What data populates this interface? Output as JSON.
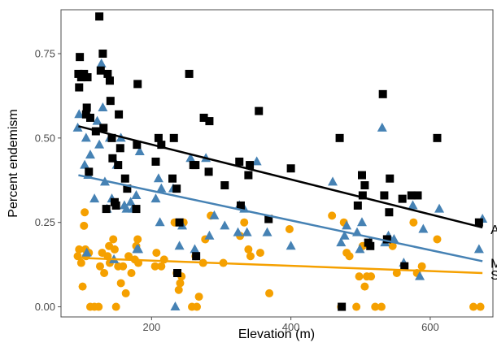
{
  "chart_data": {
    "type": "scatter",
    "title": "",
    "xlabel": "Elevation (m)",
    "ylabel": "Percent endemism",
    "xlim": [
      70,
      690
    ],
    "ylim": [
      -0.03,
      0.88
    ],
    "x_ticks": [
      200,
      400,
      600
    ],
    "x_tick_labels": [
      "200",
      "400",
      "600"
    ],
    "y_ticks": [
      0.0,
      0.25,
      0.5,
      0.75
    ],
    "y_tick_labels": [
      "0.00",
      "0.25",
      "0.50",
      "0.75"
    ],
    "grid": false,
    "legend": "none",
    "series": [
      {
        "name": "AE",
        "color": "#000000",
        "marker": "square",
        "trend": {
          "x": [
            95,
            675
          ],
          "y": [
            0.535,
            0.235
          ]
        },
        "points": [
          [
            95,
            0.69
          ],
          [
            97,
            0.74
          ],
          [
            96,
            0.65
          ],
          [
            99,
            0.68
          ],
          [
            103,
            0.69
          ],
          [
            107,
            0.59
          ],
          [
            106,
            0.57
          ],
          [
            108,
            0.68
          ],
          [
            110,
            0.4
          ],
          [
            112,
            0.56
          ],
          [
            120,
            0.52
          ],
          [
            125,
            0.86
          ],
          [
            127,
            0.7
          ],
          [
            130,
            0.75
          ],
          [
            131,
            0.53
          ],
          [
            135,
            0.29
          ],
          [
            137,
            0.69
          ],
          [
            140,
            0.67
          ],
          [
            141,
            0.61
          ],
          [
            143,
            0.5
          ],
          [
            144,
            0.44
          ],
          [
            147,
            0.31
          ],
          [
            149,
            0.3
          ],
          [
            152,
            0.42
          ],
          [
            153,
            0.57
          ],
          [
            155,
            0.47
          ],
          [
            162,
            0.38
          ],
          [
            165,
            0.35
          ],
          [
            178,
            0.29
          ],
          [
            179,
            0.48
          ],
          [
            180,
            0.66
          ],
          [
            206,
            0.43
          ],
          [
            210,
            0.5
          ],
          [
            214,
            0.48
          ],
          [
            230,
            0.38
          ],
          [
            232,
            0.5
          ],
          [
            236,
            0.35
          ],
          [
            237,
            0.1
          ],
          [
            240,
            0.25
          ],
          [
            254,
            0.69
          ],
          [
            260,
            0.42
          ],
          [
            263,
            0.42
          ],
          [
            264,
            0.15
          ],
          [
            275,
            0.56
          ],
          [
            282,
            0.4
          ],
          [
            283,
            0.55
          ],
          [
            305,
            0.36
          ],
          [
            326,
            0.43
          ],
          [
            328,
            0.3
          ],
          [
            339,
            0.39
          ],
          [
            341,
            0.42
          ],
          [
            354,
            0.58
          ],
          [
            368,
            0.26
          ],
          [
            400,
            0.41
          ],
          [
            470,
            0.5
          ],
          [
            473,
            0.0
          ],
          [
            496,
            0.3
          ],
          [
            502,
            0.39
          ],
          [
            503,
            0.33
          ],
          [
            506,
            0.36
          ],
          [
            511,
            0.19
          ],
          [
            514,
            0.18
          ],
          [
            532,
            0.63
          ],
          [
            534,
            0.33
          ],
          [
            538,
            0.2
          ],
          [
            541,
            0.28
          ],
          [
            542,
            0.38
          ],
          [
            560,
            0.32
          ],
          [
            563,
            0.12
          ],
          [
            573,
            0.33
          ],
          [
            582,
            0.33
          ],
          [
            610,
            0.5
          ],
          [
            670,
            0.25
          ]
        ]
      },
      {
        "name": "MIE",
        "color": "#4682b4",
        "marker": "triangle",
        "trend": {
          "x": [
            95,
            675
          ],
          "y": [
            0.39,
            0.135
          ]
        },
        "points": [
          [
            94,
            0.53
          ],
          [
            96,
            0.57
          ],
          [
            104,
            0.42
          ],
          [
            106,
            0.5
          ],
          [
            107,
            0.16
          ],
          [
            109,
            0.39
          ],
          [
            112,
            0.45
          ],
          [
            118,
            0.32
          ],
          [
            122,
            0.55
          ],
          [
            125,
            0.48
          ],
          [
            128,
            0.72
          ],
          [
            130,
            0.59
          ],
          [
            133,
            0.37
          ],
          [
            136,
            0.29
          ],
          [
            140,
            0.5
          ],
          [
            143,
            0.32
          ],
          [
            146,
            0.14
          ],
          [
            150,
            0.42
          ],
          [
            156,
            0.5
          ],
          [
            161,
            0.3
          ],
          [
            164,
            0.29
          ],
          [
            170,
            0.31
          ],
          [
            173,
            0.29
          ],
          [
            178,
            0.33
          ],
          [
            179,
            0.17
          ],
          [
            181,
            0.17
          ],
          [
            183,
            0.46
          ],
          [
            206,
            0.32
          ],
          [
            210,
            0.38
          ],
          [
            212,
            0.25
          ],
          [
            214,
            0.35
          ],
          [
            231,
            0.35
          ],
          [
            234,
            0.0
          ],
          [
            240,
            0.18
          ],
          [
            244,
            0.24
          ],
          [
            256,
            0.44
          ],
          [
            262,
            0.17
          ],
          [
            278,
            0.44
          ],
          [
            283,
            0.21
          ],
          [
            290,
            0.27
          ],
          [
            305,
            0.24
          ],
          [
            324,
            0.22
          ],
          [
            326,
            0.3
          ],
          [
            333,
            0.29
          ],
          [
            337,
            0.22
          ],
          [
            351,
            0.43
          ],
          [
            366,
            0.22
          ],
          [
            400,
            0.18
          ],
          [
            460,
            0.37
          ],
          [
            472,
            0.19
          ],
          [
            477,
            0.21
          ],
          [
            480,
            0.24
          ],
          [
            495,
            0.22
          ],
          [
            499,
            0.17
          ],
          [
            502,
            0.25
          ],
          [
            513,
            0.19
          ],
          [
            531,
            0.53
          ],
          [
            535,
            0.19
          ],
          [
            540,
            0.21
          ],
          [
            548,
            0.2
          ],
          [
            562,
            0.13
          ],
          [
            575,
            0.3
          ],
          [
            585,
            0.09
          ],
          [
            590,
            0.23
          ],
          [
            613,
            0.29
          ],
          [
            670,
            0.17
          ],
          [
            675,
            0.26
          ]
        ]
      },
      {
        "name": "SIE",
        "color": "#f5a000",
        "marker": "circle",
        "trend": {
          "x": [
            95,
            675
          ],
          "y": [
            0.145,
            0.1
          ]
        },
        "points": [
          [
            94,
            0.15
          ],
          [
            96,
            0.17
          ],
          [
            99,
            0.13
          ],
          [
            101,
            0.06
          ],
          [
            103,
            0.24
          ],
          [
            104,
            0.28
          ],
          [
            105,
            0.17
          ],
          [
            106,
            0.15
          ],
          [
            110,
            0.16
          ],
          [
            112,
            0.0
          ],
          [
            118,
            0.0
          ],
          [
            124,
            0.0
          ],
          [
            126,
            0.12
          ],
          [
            129,
            0.16
          ],
          [
            132,
            0.1
          ],
          [
            137,
            0.15
          ],
          [
            139,
            0.18
          ],
          [
            140,
            0.13
          ],
          [
            145,
            0.2
          ],
          [
            147,
            0.17
          ],
          [
            149,
            0.0
          ],
          [
            152,
            0.12
          ],
          [
            156,
            0.07
          ],
          [
            159,
            0.12
          ],
          [
            163,
            0.04
          ],
          [
            167,
            0.15
          ],
          [
            171,
            0.1
          ],
          [
            176,
            0.14
          ],
          [
            178,
            0.18
          ],
          [
            180,
            0.2
          ],
          [
            181,
            0.13
          ],
          [
            205,
            0.12
          ],
          [
            207,
            0.16
          ],
          [
            214,
            0.12
          ],
          [
            218,
            0.14
          ],
          [
            233,
            0.25
          ],
          [
            236,
            0.1
          ],
          [
            239,
            0.05
          ],
          [
            241,
            0.07
          ],
          [
            243,
            0.09
          ],
          [
            246,
            0.25
          ],
          [
            258,
            0.0
          ],
          [
            263,
            0.15
          ],
          [
            265,
            0.0
          ],
          [
            268,
            0.03
          ],
          [
            274,
            0.13
          ],
          [
            277,
            0.2
          ],
          [
            285,
            0.27
          ],
          [
            303,
            0.13
          ],
          [
            327,
            0.21
          ],
          [
            333,
            0.25
          ],
          [
            339,
            0.17
          ],
          [
            342,
            0.15
          ],
          [
            356,
            0.16
          ],
          [
            369,
            0.04
          ],
          [
            398,
            0.23
          ],
          [
            459,
            0.27
          ],
          [
            472,
            0.0
          ],
          [
            476,
            0.25
          ],
          [
            480,
            0.16
          ],
          [
            484,
            0.15
          ],
          [
            494,
            0.0
          ],
          [
            498,
            0.09
          ],
          [
            503,
            0.18
          ],
          [
            506,
            0.06
          ],
          [
            509,
            0.09
          ],
          [
            515,
            0.09
          ],
          [
            521,
            0.0
          ],
          [
            530,
            0.0
          ],
          [
            546,
            0.18
          ],
          [
            552,
            0.1
          ],
          [
            576,
            0.25
          ],
          [
            581,
            0.1
          ],
          [
            588,
            0.12
          ],
          [
            610,
            0.2
          ],
          [
            662,
            0.0
          ],
          [
            672,
            0.0
          ]
        ]
      }
    ]
  }
}
